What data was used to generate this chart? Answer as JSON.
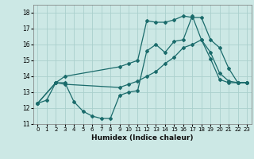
{
  "title": "",
  "xlabel": "Humidex (Indice chaleur)",
  "xlim": [
    -0.5,
    23.5
  ],
  "ylim": [
    11,
    18.5
  ],
  "xticks": [
    0,
    1,
    2,
    3,
    4,
    5,
    6,
    7,
    8,
    9,
    10,
    11,
    12,
    13,
    14,
    15,
    16,
    17,
    18,
    19,
    20,
    21,
    22,
    23
  ],
  "yticks": [
    11,
    12,
    13,
    14,
    15,
    16,
    17,
    18
  ],
  "background_color": "#cce8e5",
  "grid_color": "#aad0cc",
  "line_color": "#1a6b6b",
  "line1_x": [
    0,
    1,
    2,
    3,
    4,
    5,
    6,
    7,
    8,
    9,
    10,
    11,
    12,
    13,
    14,
    15,
    16,
    17,
    18,
    19,
    20,
    21,
    22,
    23
  ],
  "line1_y": [
    12.3,
    12.5,
    13.6,
    13.6,
    12.4,
    11.8,
    11.5,
    11.35,
    11.35,
    12.8,
    13.0,
    13.1,
    15.6,
    16.0,
    15.5,
    16.2,
    16.3,
    17.8,
    16.3,
    15.1,
    13.8,
    13.6,
    13.6,
    13.6
  ],
  "line2_x": [
    0,
    2,
    3,
    9,
    10,
    11,
    12,
    13,
    14,
    15,
    16,
    17,
    18,
    19,
    20,
    21,
    22,
    23
  ],
  "line2_y": [
    12.3,
    13.6,
    13.5,
    13.3,
    13.5,
    13.7,
    14.0,
    14.3,
    14.8,
    15.2,
    15.8,
    16.0,
    16.3,
    15.5,
    14.2,
    13.7,
    13.6,
    13.6
  ],
  "line3_x": [
    0,
    2,
    3,
    9,
    10,
    11,
    12,
    13,
    14,
    15,
    16,
    17,
    18,
    19,
    20,
    21,
    22,
    23
  ],
  "line3_y": [
    12.3,
    13.6,
    14.0,
    14.6,
    14.8,
    15.0,
    17.5,
    17.4,
    17.4,
    17.55,
    17.8,
    17.7,
    17.7,
    16.3,
    15.8,
    14.5,
    13.6,
    13.6
  ]
}
